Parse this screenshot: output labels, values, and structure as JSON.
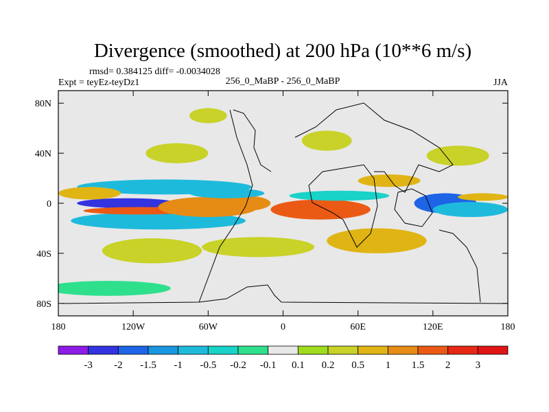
{
  "chart_data": {
    "type": "heatmap",
    "title": "Divergence (smoothed) at 200 hPa (10**6 m/s)",
    "stats_line": "rmsd= 0.384125 diff= -0.0034028",
    "experiment": "Expt = teyEz-teyDz1",
    "center_label": "256_0_MaBP - 256_0_MaBP",
    "season": "JJA",
    "x_ticks": [
      {
        "value": -180,
        "label": "180"
      },
      {
        "value": -120,
        "label": "120W"
      },
      {
        "value": -60,
        "label": "60W"
      },
      {
        "value": 0,
        "label": "0"
      },
      {
        "value": 60,
        "label": "60E"
      },
      {
        "value": 120,
        "label": "120E"
      },
      {
        "value": 180,
        "label": "180"
      }
    ],
    "y_ticks": [
      {
        "value": 80,
        "label": "80N"
      },
      {
        "value": 40,
        "label": "40N"
      },
      {
        "value": 0,
        "label": "0"
      },
      {
        "value": -40,
        "label": "40S"
      },
      {
        "value": -80,
        "label": "80S"
      }
    ],
    "xlim": [
      -180,
      180
    ],
    "ylim": [
      -90,
      90
    ],
    "colorbar": {
      "labels": [
        "-3",
        "-2",
        "-1.5",
        "-1",
        "-0.5",
        "-0.2",
        "-0.1",
        "0.1",
        "0.2",
        "0.5",
        "1",
        "1.5",
        "2",
        "3"
      ],
      "colors": [
        "#8c1ce6",
        "#3333e0",
        "#1e64e6",
        "#1996e0",
        "#1ebadc",
        "#19d2c8",
        "#2ee08c",
        "#e8e8e8",
        "#a0dc1e",
        "#c8d228",
        "#e0b414",
        "#e68c14",
        "#eb5a14",
        "#e62814",
        "#e01414"
      ]
    },
    "regions": [
      {
        "lon": -125,
        "lat": 0,
        "rx": 40,
        "ry": 4,
        "level": -2.5
      },
      {
        "lon": -140,
        "lat": 0,
        "rx": 25,
        "ry": 3,
        "level": -2.5
      },
      {
        "lon": -100,
        "lat": -14,
        "rx": 70,
        "ry": 7,
        "level": -0.8
      },
      {
        "lon": -95,
        "lat": 13,
        "rx": 70,
        "ry": 6,
        "level": -0.6
      },
      {
        "lon": -115,
        "lat": -6,
        "rx": 45,
        "ry": 3,
        "level": 1.8
      },
      {
        "lon": -155,
        "lat": 8,
        "rx": 25,
        "ry": 5,
        "level": 0.7
      },
      {
        "lon": -60,
        "lat": -3,
        "rx": 40,
        "ry": 8,
        "level": 1.0
      },
      {
        "lon": -30,
        "lat": 0,
        "rx": 20,
        "ry": 6,
        "level": 1.2
      },
      {
        "lon": -45,
        "lat": 8,
        "rx": 30,
        "ry": 4,
        "level": -1.0
      },
      {
        "lon": 30,
        "lat": -5,
        "rx": 40,
        "ry": 8,
        "level": 1.5
      },
      {
        "lon": 45,
        "lat": 6,
        "rx": 40,
        "ry": 4,
        "level": -0.5
      },
      {
        "lon": 130,
        "lat": 0,
        "rx": 25,
        "ry": 8,
        "level": -1.6
      },
      {
        "lon": 150,
        "lat": -5,
        "rx": 30,
        "ry": 6,
        "level": -0.7
      },
      {
        "lon": 160,
        "lat": 5,
        "rx": 20,
        "ry": 3,
        "level": 0.6
      },
      {
        "lon": 85,
        "lat": 18,
        "rx": 25,
        "ry": 5,
        "level": 0.8
      },
      {
        "lon": 75,
        "lat": -30,
        "rx": 40,
        "ry": 10,
        "level": 0.5
      },
      {
        "lon": -20,
        "lat": -35,
        "rx": 45,
        "ry": 8,
        "level": 0.3
      },
      {
        "lon": -105,
        "lat": -38,
        "rx": 40,
        "ry": 10,
        "level": 0.3
      },
      {
        "lon": -85,
        "lat": 40,
        "rx": 25,
        "ry": 8,
        "level": 0.4
      },
      {
        "lon": 35,
        "lat": 50,
        "rx": 20,
        "ry": 8,
        "level": 0.4
      },
      {
        "lon": -140,
        "lat": -68,
        "rx": 50,
        "ry": 6,
        "level": -0.15
      },
      {
        "lon": -60,
        "lat": 70,
        "rx": 15,
        "ry": 6,
        "level": 0.3
      },
      {
        "lon": 140,
        "lat": 38,
        "rx": 25,
        "ry": 8,
        "level": 0.4
      }
    ]
  }
}
